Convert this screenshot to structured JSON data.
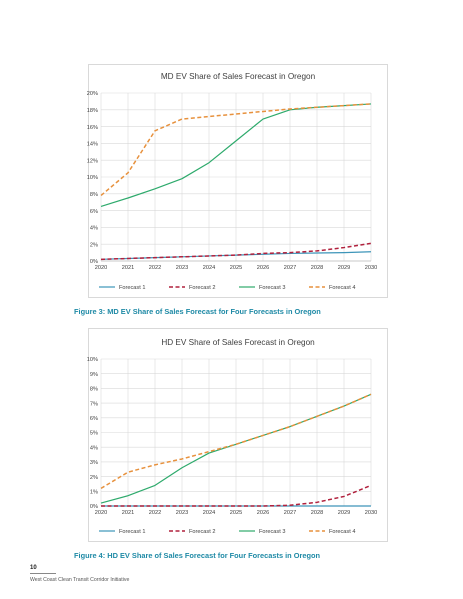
{
  "charts": [
    {
      "type": "line",
      "title": "MD EV Share of Sales Forecast in Oregon",
      "xlabel": "",
      "ylabel": "",
      "x": [
        2020,
        2021,
        2022,
        2023,
        2024,
        2025,
        2026,
        2027,
        2028,
        2029,
        2030
      ],
      "ylim": [
        0,
        20
      ],
      "yticks": [
        "0%",
        "2%",
        "4%",
        "6%",
        "8%",
        "10%",
        "12%",
        "14%",
        "16%",
        "18%",
        "20%"
      ],
      "grid": true,
      "legend_position": "bottom",
      "series": [
        {
          "name": "Forecast 1",
          "color": "#3d95b9",
          "dash": "solid",
          "values": [
            0.2,
            0.3,
            0.4,
            0.5,
            0.6,
            0.7,
            0.8,
            0.9,
            0.95,
            1.0,
            1.1
          ]
        },
        {
          "name": "Forecast 2",
          "color": "#b1213d",
          "dash": "dash",
          "values": [
            0.2,
            0.3,
            0.4,
            0.5,
            0.6,
            0.7,
            0.9,
            1.0,
            1.2,
            1.6,
            2.1
          ]
        },
        {
          "name": "Forecast 3",
          "color": "#2eaa6c",
          "dash": "solid",
          "values": [
            6.5,
            7.5,
            8.6,
            9.8,
            11.7,
            14.3,
            16.9,
            18.0,
            18.3,
            18.5,
            18.7
          ]
        },
        {
          "name": "Forecast 4",
          "color": "#e7913d",
          "dash": "dash",
          "values": [
            7.8,
            10.5,
            15.5,
            16.9,
            17.2,
            17.5,
            17.8,
            18.1,
            18.3,
            18.5,
            18.7
          ]
        }
      ]
    },
    {
      "type": "line",
      "title": "HD EV Share of Sales Forecast in Oregon",
      "xlabel": "",
      "ylabel": "",
      "x": [
        2020,
        2021,
        2022,
        2023,
        2024,
        2025,
        2026,
        2027,
        2028,
        2029,
        2030
      ],
      "ylim": [
        0,
        10
      ],
      "yticks": [
        "0%",
        "1%",
        "2%",
        "3%",
        "4%",
        "5%",
        "6%",
        "7%",
        "8%",
        "9%",
        "10%"
      ],
      "grid": true,
      "legend_position": "bottom",
      "series": [
        {
          "name": "Forecast 1",
          "color": "#3d95b9",
          "dash": "solid",
          "values": [
            0,
            0,
            0,
            0,
            0,
            0,
            0,
            0,
            0,
            0,
            0
          ]
        },
        {
          "name": "Forecast 2",
          "color": "#b1213d",
          "dash": "dash",
          "values": [
            0,
            0,
            0,
            0,
            0,
            0,
            0,
            0.05,
            0.25,
            0.65,
            1.4
          ]
        },
        {
          "name": "Forecast 3",
          "color": "#2eaa6c",
          "dash": "solid",
          "values": [
            0.2,
            0.7,
            1.4,
            2.6,
            3.6,
            4.2,
            4.8,
            5.4,
            6.1,
            6.8,
            7.6
          ]
        },
        {
          "name": "Forecast 4",
          "color": "#e7913d",
          "dash": "dash",
          "values": [
            1.2,
            2.3,
            2.8,
            3.2,
            3.7,
            4.2,
            4.8,
            5.4,
            6.1,
            6.8,
            7.6
          ]
        }
      ]
    }
  ],
  "chart_data": [
    {
      "type": "line",
      "title": "MD EV Share of Sales Forecast in Oregon",
      "x": [
        2020,
        2021,
        2022,
        2023,
        2024,
        2025,
        2026,
        2027,
        2028,
        2029,
        2030
      ],
      "ylim": [
        0,
        20
      ],
      "series": [
        {
          "name": "Forecast 1",
          "values": [
            0.2,
            0.3,
            0.4,
            0.5,
            0.6,
            0.7,
            0.8,
            0.9,
            0.95,
            1.0,
            1.1
          ]
        },
        {
          "name": "Forecast 2",
          "values": [
            0.2,
            0.3,
            0.4,
            0.5,
            0.6,
            0.7,
            0.9,
            1.0,
            1.2,
            1.6,
            2.1
          ]
        },
        {
          "name": "Forecast 3",
          "values": [
            6.5,
            7.5,
            8.6,
            9.8,
            11.7,
            14.3,
            16.9,
            18.0,
            18.3,
            18.5,
            18.7
          ]
        },
        {
          "name": "Forecast 4",
          "values": [
            7.8,
            10.5,
            15.5,
            16.9,
            17.2,
            17.5,
            17.8,
            18.1,
            18.3,
            18.5,
            18.7
          ]
        }
      ]
    },
    {
      "type": "line",
      "title": "HD EV Share of Sales Forecast in Oregon",
      "x": [
        2020,
        2021,
        2022,
        2023,
        2024,
        2025,
        2026,
        2027,
        2028,
        2029,
        2030
      ],
      "ylim": [
        0,
        10
      ],
      "series": [
        {
          "name": "Forecast 1",
          "values": [
            0,
            0,
            0,
            0,
            0,
            0,
            0,
            0,
            0,
            0,
            0
          ]
        },
        {
          "name": "Forecast 2",
          "values": [
            0,
            0,
            0,
            0,
            0,
            0,
            0,
            0.05,
            0.25,
            0.65,
            1.4
          ]
        },
        {
          "name": "Forecast 3",
          "values": [
            0.2,
            0.7,
            1.4,
            2.6,
            3.6,
            4.2,
            4.8,
            5.4,
            6.1,
            6.8,
            7.6
          ]
        },
        {
          "name": "Forecast 4",
          "values": [
            1.2,
            2.3,
            2.8,
            3.2,
            3.7,
            4.2,
            4.8,
            5.4,
            6.1,
            6.8,
            7.6
          ]
        }
      ]
    }
  ],
  "captions": [
    "Figure 3: MD EV Share of Sales Forecast for Four Forecasts in Oregon",
    "Figure 4: HD EV Share of Sales Forecast for Four Forecasts in Oregon"
  ],
  "footer": {
    "page_number": "10",
    "organization": "West Coast Clean Transit Corridor Initiative"
  }
}
